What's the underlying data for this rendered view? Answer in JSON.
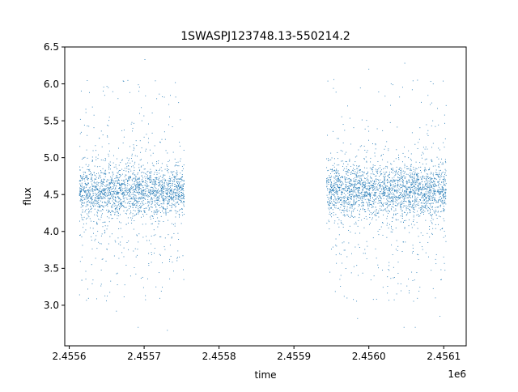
{
  "chart_data": {
    "type": "scatter",
    "title": "1SWASPJ123748.13-550214.2",
    "xlabel": "time",
    "ylabel": "flux",
    "x_offset_label": "1e6",
    "xlim": [
      2455594,
      2456130
    ],
    "ylim": [
      2.45,
      6.5
    ],
    "x_ticks": [
      2455600,
      2455700,
      2455800,
      2455900,
      2456000,
      2456100
    ],
    "x_tick_labels": [
      "2.4556",
      "2.4557",
      "2.4558",
      "2.4559",
      "2.4560",
      "2.4561"
    ],
    "y_ticks": [
      3.0,
      3.5,
      4.0,
      4.5,
      5.0,
      5.5,
      6.0,
      6.5
    ],
    "y_tick_labels": [
      "3.0",
      "3.5",
      "4.0",
      "4.5",
      "5.0",
      "5.5",
      "6.0",
      "6.5"
    ],
    "grid": false,
    "legend": "none",
    "marker_color": "#1f77b4",
    "series": [
      {
        "segments": [
          {
            "x_start": 2455614,
            "x_end": 2455754,
            "median": 4.55,
            "core_spread": 0.16,
            "outlier_low": 2.68,
            "outlier_high": 6.33
          },
          {
            "x_start": 2455944,
            "x_end": 2456104,
            "median": 4.55,
            "core_spread": 0.18,
            "outlier_low": 2.7,
            "outlier_high": 6.3
          }
        ]
      }
    ],
    "extreme_points": [
      {
        "x": 2455672,
        "y": 6.04
      },
      {
        "x": 2455701,
        "y": 6.33
      },
      {
        "x": 2455693,
        "y": 5.9
      },
      {
        "x": 2455727,
        "y": 5.82
      },
      {
        "x": 2455733,
        "y": 5.72
      },
      {
        "x": 2455663,
        "y": 2.92
      },
      {
        "x": 2455692,
        "y": 2.7
      },
      {
        "x": 2455731,
        "y": 2.66
      },
      {
        "x": 2456000,
        "y": 6.2
      },
      {
        "x": 2456048,
        "y": 6.28
      },
      {
        "x": 2456065,
        "y": 6.05
      },
      {
        "x": 2456058,
        "y": 5.92
      },
      {
        "x": 2456070,
        "y": 5.75
      },
      {
        "x": 2456082,
        "y": 5.72
      },
      {
        "x": 2456047,
        "y": 2.7
      },
      {
        "x": 2456062,
        "y": 2.7
      },
      {
        "x": 2456095,
        "y": 2.85
      },
      {
        "x": 2455985,
        "y": 2.82
      }
    ]
  }
}
